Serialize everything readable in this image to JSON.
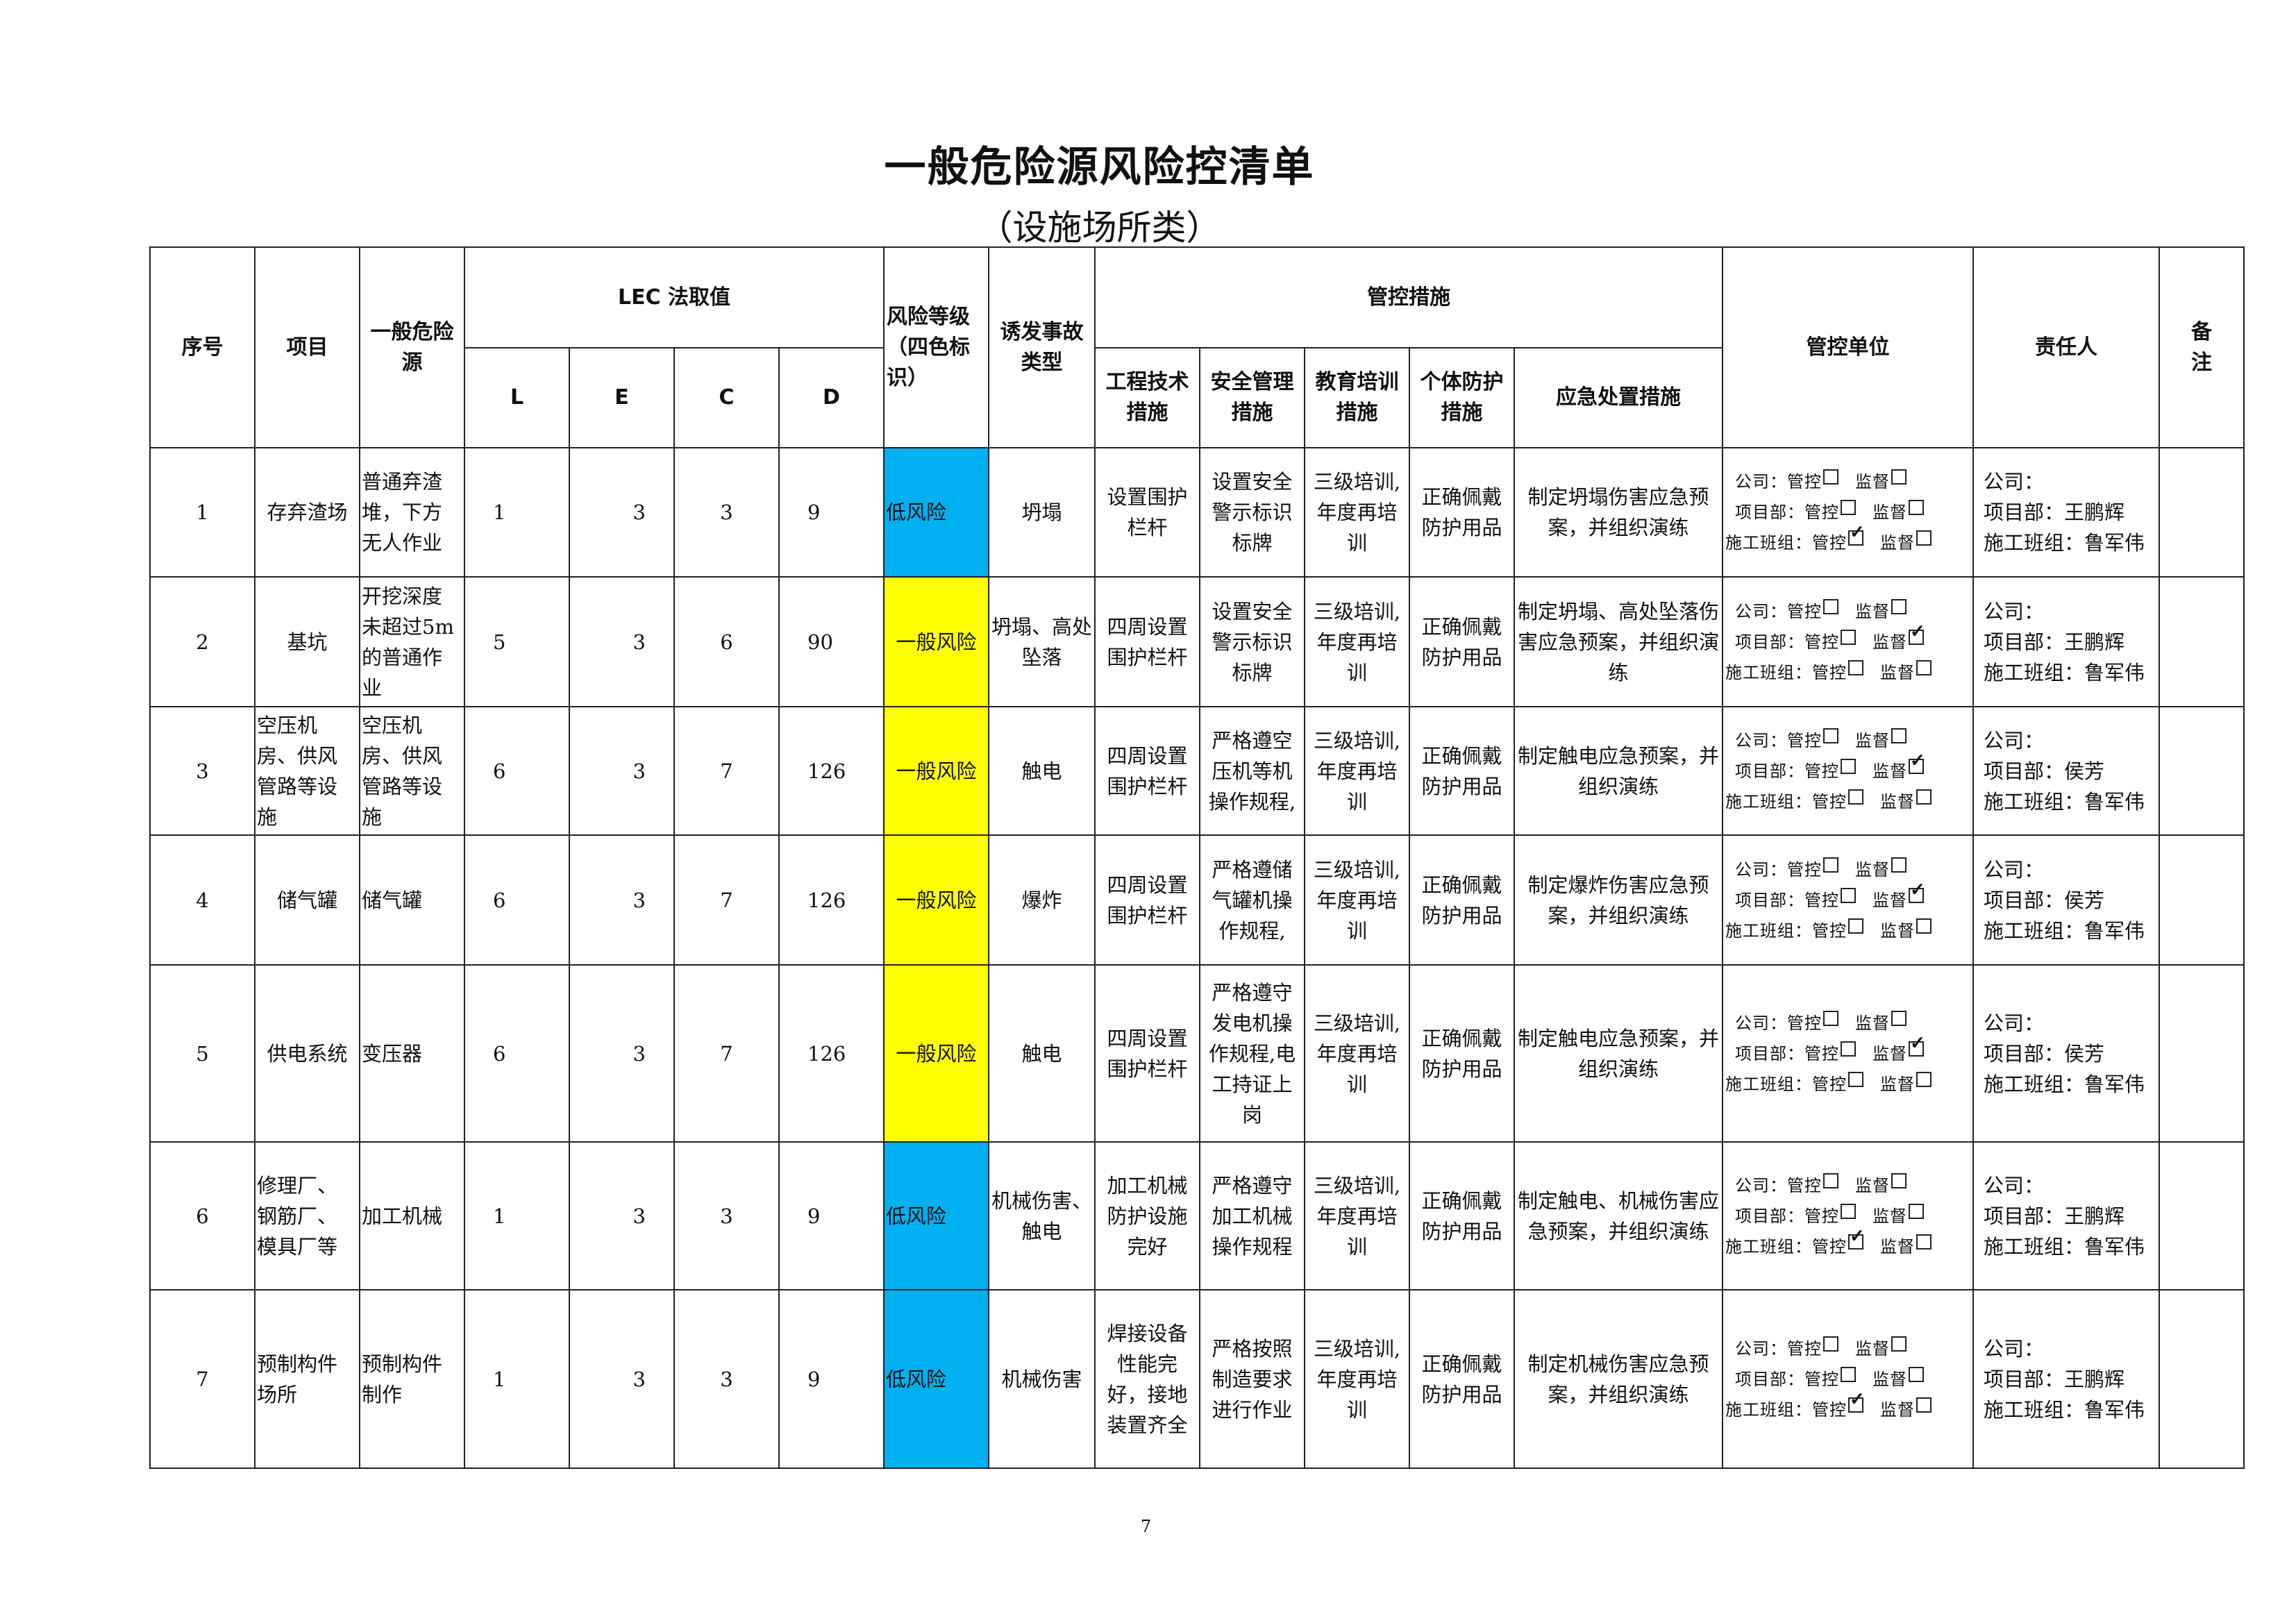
{
  "title": "一般危险源风险控清单",
  "subtitle": "（设施场所类）",
  "page_number": "7",
  "colors": {
    "low_risk": "#00B0F0",
    "general_risk": "#FFFF00"
  },
  "headers": {
    "seq": "序号",
    "item": "项目",
    "hazard": "一般危险源",
    "lec": "LEC 法取值",
    "L": "L",
    "E": "E",
    "C": "C",
    "D": "D",
    "risk_level": "风险等级（四色标识）",
    "accident_type": "诱发事故类型",
    "measures": "管控措施",
    "engineering": "工程技术措施",
    "safety_mgmt": "安全管理措施",
    "training": "教育培训措施",
    "ppe": "个体防护措施",
    "emergency": "应急处置措施",
    "control_unit": "管控单位",
    "responsible": "责任人",
    "remarks": "备注"
  },
  "rows": [
    {
      "seq": "1",
      "item": "存弃渣场",
      "hazard": "普通弃渣堆，下方无人作业",
      "L": "1",
      "E": "3",
      "C": "3",
      "D": "9",
      "risk": "低风险",
      "risk_color": "low_risk",
      "accident": "坍塌",
      "engineering": "设置围护栏杆",
      "safety": "设置安全警示标识标牌",
      "training": "三级培训,年度再培训",
      "ppe": "正确佩戴防护用品",
      "emergency": "制定坍塌伤害应急预案，并组织演练",
      "units": [
        {
          "label": "公司：",
          "control": false,
          "supervise": false
        },
        {
          "label": "项目部：",
          "control": false,
          "supervise": false
        },
        {
          "label": "施工班组：",
          "control": true,
          "supervise": false
        }
      ],
      "persons": {
        "company": "公司：",
        "project": "项目部：王鹏辉",
        "team": "施工班组：鲁军伟"
      },
      "remarks": ""
    },
    {
      "seq": "2",
      "item": "基坑",
      "hazard": "开挖深度未超过5m的普通作业",
      "L": "5",
      "E": "3",
      "C": "6",
      "D": "90",
      "risk": "一般风险",
      "risk_color": "general_risk",
      "accident": "坍塌、高处坠落",
      "engineering": "四周设置围护栏杆",
      "safety": "设置安全警示标识标牌",
      "training": "三级培训,年度再培训",
      "ppe": "正确佩戴防护用品",
      "emergency": "制定坍塌、高处坠落伤害应急预案，并组织演练",
      "units": [
        {
          "label": "公司：",
          "control": false,
          "supervise": false
        },
        {
          "label": "项目部：",
          "control": false,
          "supervise": true
        },
        {
          "label": "施工班组：",
          "control": false,
          "supervise": false
        }
      ],
      "persons": {
        "company": "公司：",
        "project": "项目部：王鹏辉",
        "team": "施工班组：鲁军伟"
      },
      "remarks": ""
    },
    {
      "seq": "3",
      "item": "空压机房、供风管路等设施",
      "hazard": "空压机房、供风管路等设施",
      "L": "6",
      "E": "3",
      "C": "7",
      "D": "126",
      "risk": "一般风险",
      "risk_color": "general_risk",
      "accident": "触电",
      "engineering": "四周设置围护栏杆",
      "safety": "严格遵空压机等机操作规程,",
      "training": "三级培训,年度再培训",
      "ppe": "正确佩戴防护用品",
      "emergency": "制定触电应急预案，并组织演练",
      "units": [
        {
          "label": "公司：",
          "control": false,
          "supervise": false
        },
        {
          "label": "项目部：",
          "control": false,
          "supervise": true
        },
        {
          "label": "施工班组：",
          "control": false,
          "supervise": false
        }
      ],
      "persons": {
        "company": "公司：",
        "project": "项目部：侯芳",
        "team": "施工班组：鲁军伟"
      },
      "remarks": ""
    },
    {
      "seq": "4",
      "item": "储气罐",
      "hazard": "储气罐",
      "L": "6",
      "E": "3",
      "C": "7",
      "D": "126",
      "risk": "一般风险",
      "risk_color": "general_risk",
      "accident": "爆炸",
      "engineering": "四周设置围护栏杆",
      "safety": "严格遵储气罐机操作规程,",
      "training": "三级培训,年度再培训",
      "ppe": "正确佩戴防护用品",
      "emergency": "制定爆炸伤害应急预案，并组织演练",
      "units": [
        {
          "label": "公司：",
          "control": false,
          "supervise": false
        },
        {
          "label": "项目部：",
          "control": false,
          "supervise": true
        },
        {
          "label": "施工班组：",
          "control": false,
          "supervise": false
        }
      ],
      "persons": {
        "company": "公司：",
        "project": "项目部：侯芳",
        "team": "施工班组：鲁军伟"
      },
      "remarks": ""
    },
    {
      "seq": "5",
      "item": "供电系统",
      "hazard": "变压器",
      "L": "6",
      "E": "3",
      "C": "7",
      "D": "126",
      "risk": "一般风险",
      "risk_color": "general_risk",
      "accident": "触电",
      "engineering": "四周设置围护栏杆",
      "safety": "严格遵守发电机操作规程,电工持证上岗",
      "training": "三级培训,年度再培训",
      "ppe": "正确佩戴防护用品",
      "emergency": "制定触电应急预案，并组织演练",
      "units": [
        {
          "label": "公司：",
          "control": false,
          "supervise": false
        },
        {
          "label": "项目部：",
          "control": false,
          "supervise": true
        },
        {
          "label": "施工班组：",
          "control": false,
          "supervise": false
        }
      ],
      "persons": {
        "company": "公司：",
        "project": "项目部：侯芳",
        "team": "施工班组：鲁军伟"
      },
      "remarks": ""
    },
    {
      "seq": "6",
      "item": "修理厂、钢筋厂、模具厂等",
      "hazard": "加工机械",
      "L": "1",
      "E": "3",
      "C": "3",
      "D": "9",
      "risk": "低风险",
      "risk_color": "low_risk",
      "accident": "机械伤害、触电",
      "engineering": "加工机械防护设施完好",
      "safety": "严格遵守加工机械操作规程",
      "training": "三级培训,年度再培训",
      "ppe": "正确佩戴防护用品",
      "emergency": "制定触电、机械伤害应急预案，并组织演练",
      "units": [
        {
          "label": "公司：",
          "control": false,
          "supervise": false
        },
        {
          "label": "项目部：",
          "control": false,
          "supervise": false
        },
        {
          "label": "施工班组：",
          "control": true,
          "supervise": false
        }
      ],
      "persons": {
        "company": "公司：",
        "project": "项目部：王鹏辉",
        "team": "施工班组：鲁军伟"
      },
      "remarks": ""
    },
    {
      "seq": "7",
      "item": "预制构件场所",
      "hazard": "预制构件制作",
      "L": "1",
      "E": "3",
      "C": "3",
      "D": "9",
      "risk": "低风险",
      "risk_color": "low_risk",
      "accident": "机械伤害",
      "engineering": "焊接设备性能完好，接地装置齐全",
      "safety": "严格按照制造要求进行作业",
      "training": "三级培训,年度再培训",
      "ppe": "正确佩戴防护用品",
      "emergency": "制定机械伤害应急预案，并组织演练",
      "units": [
        {
          "label": "公司：",
          "control": false,
          "supervise": false
        },
        {
          "label": "项目部：",
          "control": false,
          "supervise": false
        },
        {
          "label": "施工班组：",
          "control": true,
          "supervise": false
        }
      ],
      "persons": {
        "company": "公司：",
        "project": "项目部：王鹏辉",
        "team": "施工班组：鲁军伟"
      },
      "remarks": ""
    }
  ],
  "labels": {
    "control": "管控",
    "supervise": "监督"
  }
}
